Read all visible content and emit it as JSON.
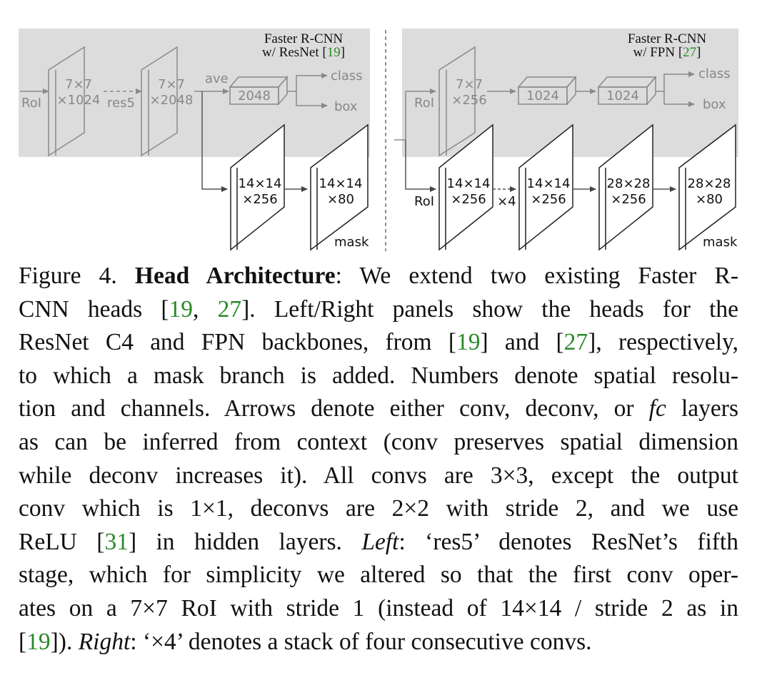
{
  "figure": {
    "left": {
      "title_line1": "Faster R-CNN",
      "title_line2_prefix": "w/ ResNet [",
      "title_cite": "19",
      "title_line2_suffix": "]",
      "roi_label": "RoI",
      "block1_top": "7×7",
      "block1_bottom": "×1024",
      "res5_label": "res5",
      "block2_top": "7×7",
      "block2_bottom": "×2048",
      "ave_label": "ave",
      "box_2048": "2048",
      "class_label": "class",
      "box_label": "box",
      "mask_block1_top": "14×14",
      "mask_block1_bottom": "×256",
      "mask_block2_top": "14×14",
      "mask_block2_bottom": "×80",
      "mask_label": "mask"
    },
    "right": {
      "title_line1": "Faster R-CNN",
      "title_line2_prefix": "w/ FPN [",
      "title_cite": "27",
      "title_line2_suffix": "]",
      "roi_label_top": "RoI",
      "block1_top": "7×7",
      "block1_bottom": "×256",
      "fc1": "1024",
      "fc2": "1024",
      "class_label": "class",
      "box_label": "box",
      "roi_label_bottom": "RoI",
      "m1_top": "14×14",
      "m1_bottom": "×256",
      "x4_label": "×4",
      "m2_top": "14×14",
      "m2_bottom": "×256",
      "m3_top": "28×28",
      "m3_bottom": "×256",
      "m4_top": "28×28",
      "m4_bottom": "×80",
      "mask_label": "mask"
    }
  },
  "caption": {
    "l1_a": "Figure 4. ",
    "l1_bold": "Head Architecture",
    "l1_b": ": We extend two existing Faster R-",
    "l2_a": "CNN heads [",
    "l2_c1": "19",
    "l2_b": ", ",
    "l2_c2": "27",
    "l2_c": "].  Left/Right panels show the heads for the",
    "l3_a": "ResNet C4 and FPN backbones, from [",
    "l3_c1": "19",
    "l3_b": "] and [",
    "l3_c2": "27",
    "l3_c": "], respectively,",
    "l4": "to which a mask branch is added. Numbers denote spatial resolu-",
    "l5_a": "tion and channels. Arrows denote either conv, deconv, or ",
    "l5_it": "fc",
    "l5_b": " layers",
    "l6": "as can be inferred from context (conv preserves spatial dimension",
    "l7": "while deconv increases it).  All convs are 3×3, except the output",
    "l8": "conv which is 1×1, deconvs are 2×2 with stride 2, and we use",
    "l9_a": "ReLU [",
    "l9_c": "31",
    "l9_b": "] in hidden layers. ",
    "l9_it": "Left",
    "l9_d": ": ‘res5’ denotes ResNet’s fifth",
    "l10": "stage, which for simplicity we altered so that the first conv oper-",
    "l11": "ates on a 7×7 RoI with stride 1 (instead of 14×14 / stride 2 as in",
    "l12_a": "[",
    "l12_c": "19",
    "l12_b": "]). ",
    "l12_it": "Right",
    "l12_d": ": ‘×4’ denotes a stack of four consecutive convs."
  }
}
